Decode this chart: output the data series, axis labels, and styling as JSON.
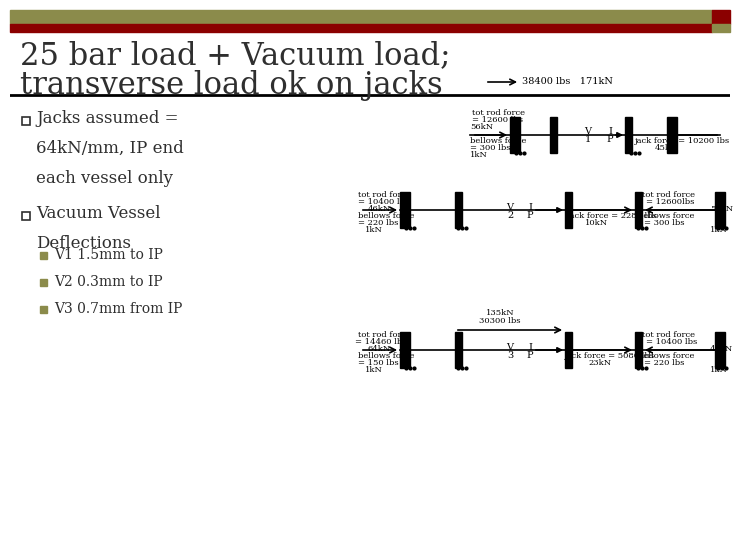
{
  "title_line1": "25 bar load + Vacuum load;",
  "title_line2": "transverse load ok on jacks",
  "title_color": "#2F2F2F",
  "bg_color": "#FFFFFF",
  "header_bar_color1": "#8B8B4B",
  "header_bar_color2": "#8B0000",
  "bullet_color": "#8B8B4B",
  "bullet1": "Jacks assumed =\n64kN/mm, IP end\neach vessel only",
  "bullet2": "Vacuum Vessel\nDeflections",
  "sub_bullets": [
    "V1 1.5mm to IP",
    "V2 0.3mm to IP",
    "V3 0.7mm from IP"
  ],
  "top_label": "38400 lbs   171kN",
  "diag1_rod_kN": "56kN",
  "diag1_rod_lbs": "= 12600 lbs",
  "diag1_bellows": "bellows force\n= 300 lbs",
  "diag1_bellows_kN": "1kN",
  "diag1_jack": "jack force = 10200 lbs",
  "diag1_jack_kN": "45kN",
  "diag1_V": "V\n1",
  "diag1_IP": "I\nP",
  "diag2_left_kN": "46kN",
  "diag2_left_lbs": "= 10400 lbs",
  "diag2_right_lbs": "= 12600lbs",
  "diag2_right_kN": "56kN",
  "diag2_bellows_left": "bellows force\n= 220 lbs",
  "diag2_bellows_left_kN": "1kN",
  "diag2_bellows_right": "bellows force\n= 300 lbs",
  "diag2_bellows_right_kN": "1kN",
  "diag2_jack": "jack force = 2280 lbs",
  "diag2_jack_kN": "10kN",
  "diag2_V": "V\n2",
  "diag2_IP": "I\nP",
  "diag3_top_kN": "135kN",
  "diag3_top_lbs": "30300 lbs",
  "diag3_left_lbs": "= 14460 lbs",
  "diag3_left_kN": "64kN",
  "diag3_right_lbs": "= 10400 lbs",
  "diag3_right_kN": "46kN",
  "diag3_bellows_left": "bellows force\n= 150 lbs",
  "diag3_bellows_left_kN": "1kN",
  "diag3_bellows_right": "bellows force\n= 220 lbs",
  "diag3_bellows_right_kN": "1kN",
  "diag3_jack": "jack force = 5080 lbs",
  "diag3_jack_kN": "23kN",
  "diag3_V": "V\n3",
  "diag3_IP": "I\nP"
}
